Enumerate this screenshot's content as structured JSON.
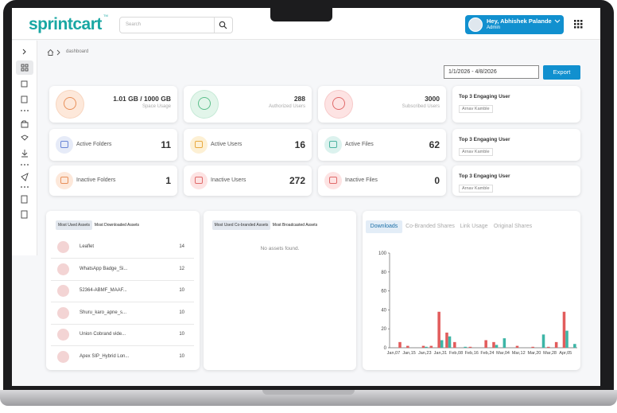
{
  "header": {
    "logo": "sprintcart",
    "logo_mark": "TM",
    "search_placeholder": "Search",
    "user_greeting": "Hey, Abhishek Palande",
    "user_role": "Admin"
  },
  "breadcrumb": "dashboard",
  "date_range": "1/1/2026 - 4/8/2026",
  "export_button": "Export",
  "stat_cards": [
    {
      "value": "1.01 GB / 1000 GB",
      "label": "Space Usage"
    },
    {
      "value": 288,
      "label": "Authorized Users"
    },
    {
      "value": 3000,
      "label": "Subscribed Users"
    }
  ],
  "count_cards": [
    {
      "label": "Active Folders",
      "value": 11
    },
    {
      "label": "Active Users",
      "value": 16
    },
    {
      "label": "Active Files",
      "value": 62
    },
    {
      "label": "Inactive Folders",
      "value": 1
    },
    {
      "label": "Inactive Users",
      "value": 272
    },
    {
      "label": "Inactive Files",
      "value": 0
    }
  ],
  "engaging_cards": [
    {
      "title": "Top 3 Engaging User",
      "user": "Arnav Kamble"
    },
    {
      "title": "Top 3 Engaging User",
      "user": "Arnav Kamble"
    },
    {
      "title": "Top 3 Engaging User",
      "user": "Arnav Kamble"
    }
  ],
  "assets_panel": {
    "tabs": [
      "Most Used Assets",
      "Most Downloaded Assets"
    ],
    "rows": [
      {
        "name": "Leaflet",
        "count": 14
      },
      {
        "name": "WhatsApp Badge_Si...",
        "count": 12
      },
      {
        "name": "52364-ABMF_MAAF...",
        "count": 10
      },
      {
        "name": "Shuru_karo_apne_s...",
        "count": 10
      },
      {
        "name": "Union Cobrand vide...",
        "count": 10
      },
      {
        "name": "Apex SIP_Hybrid Lon...",
        "count": 10
      }
    ]
  },
  "cobranded_panel": {
    "tabs": [
      "Most Used Co-branded Assets",
      "Most Broadcasted Assets"
    ],
    "empty_message": "No assets found."
  },
  "analytics_panel": {
    "tabs": [
      "Downloads",
      "Co-Branded Shares",
      "Link Usage",
      "Original Shares"
    ]
  },
  "chart_data": {
    "type": "bar",
    "categories": [
      "Jan,07",
      null,
      "Jan,15",
      null,
      "Jan,23",
      null,
      "Jan,31",
      null,
      "Feb,08",
      null,
      "Feb,16",
      null,
      "Feb,24",
      null,
      "Mar,04",
      null,
      "Mar,12",
      null,
      "Mar,20",
      null,
      "Mar,28",
      null,
      "Apr,05",
      null
    ],
    "series": [
      {
        "color": "#e25c5c",
        "values": [
          0,
          6,
          2,
          0,
          2,
          2,
          38,
          16,
          6,
          0,
          1,
          0,
          8,
          6,
          0,
          0,
          2,
          0,
          1,
          0,
          1,
          6,
          38,
          0
        ]
      },
      {
        "color": "#3db5a6",
        "values": [
          0,
          0,
          0,
          0,
          1,
          0,
          8,
          12,
          0,
          1,
          0,
          0,
          0,
          3,
          10,
          0,
          0,
          0,
          0,
          14,
          0,
          0,
          18,
          4
        ]
      }
    ],
    "ylim": [
      0,
      100
    ],
    "yticks": [
      0,
      20,
      40,
      60,
      80,
      100
    ]
  }
}
